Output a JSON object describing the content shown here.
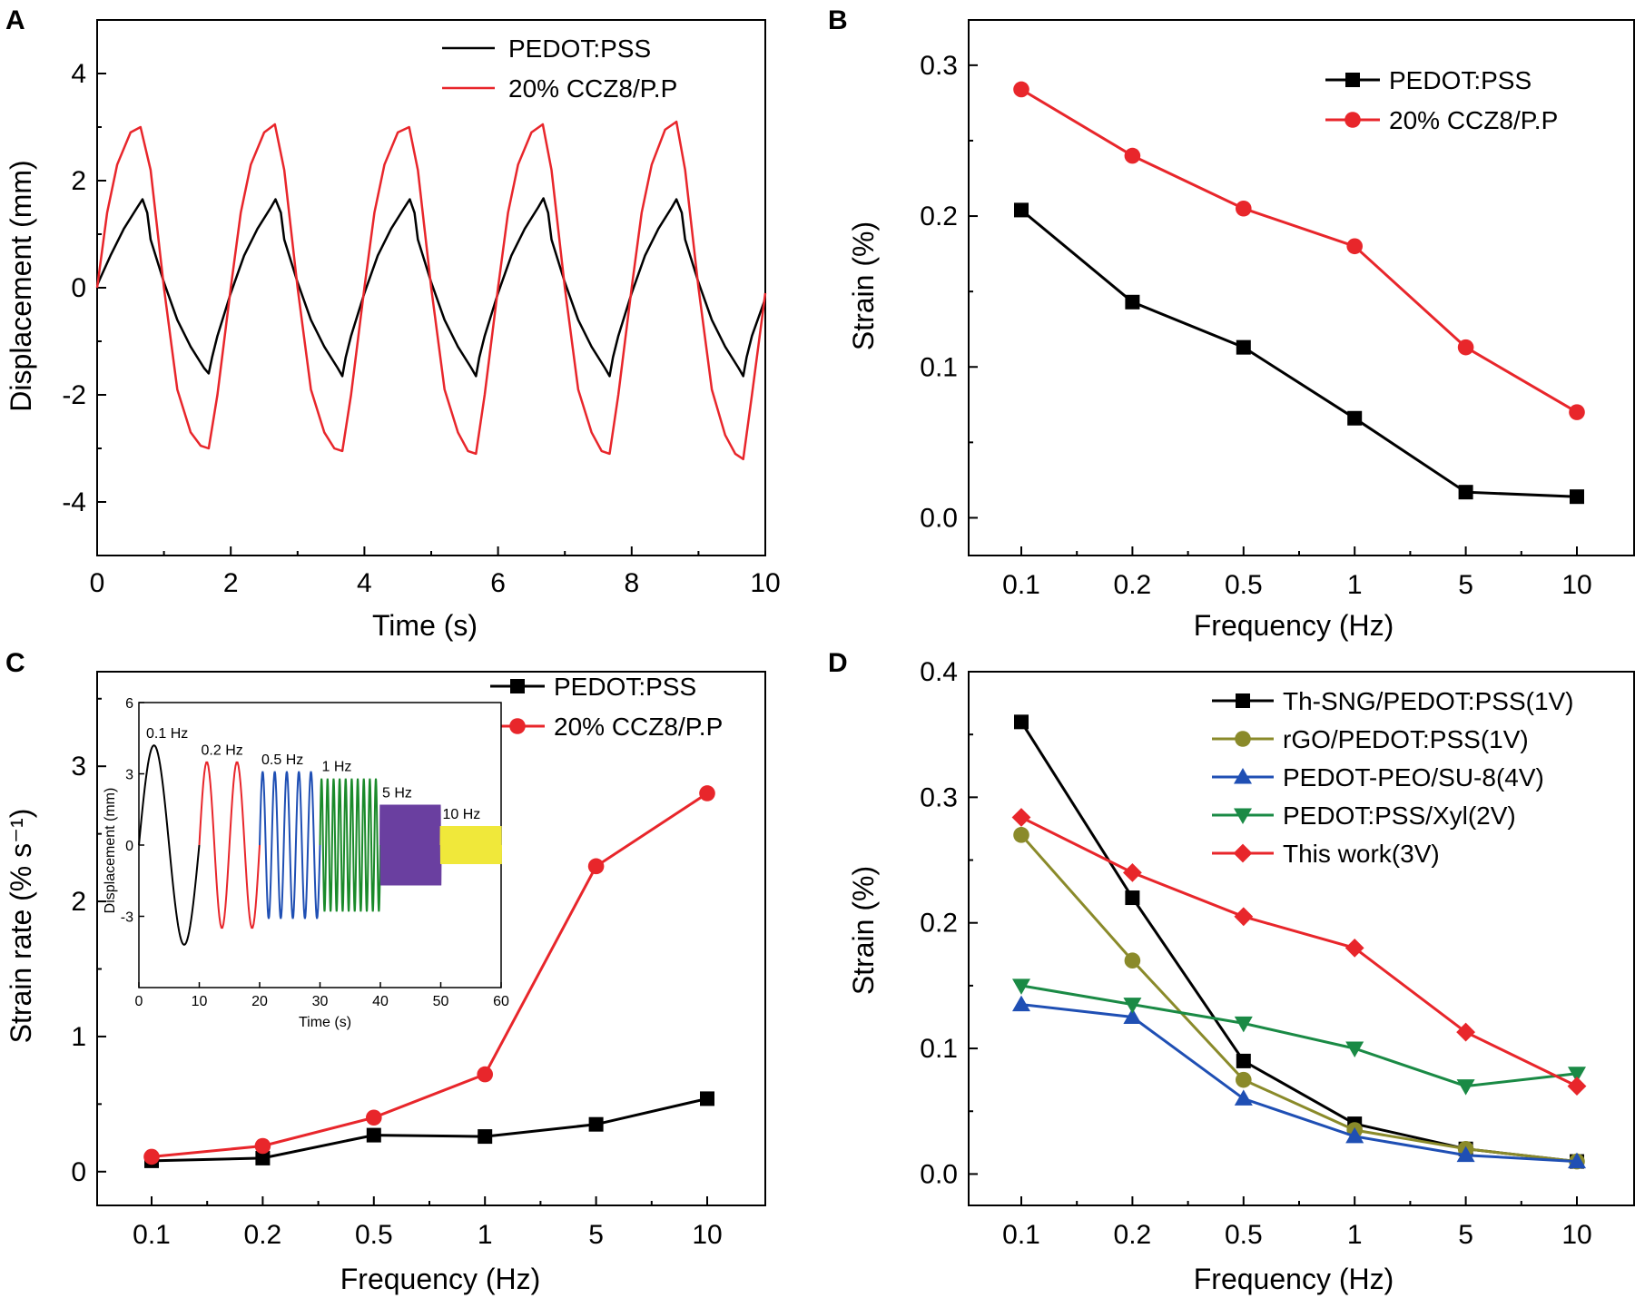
{
  "chart_data": [
    {
      "panel": "A",
      "type": "line",
      "xlabel": "Time (s)",
      "ylabel": "Displacement (mm)",
      "xlim": [
        0,
        10
      ],
      "ylim": [
        -5,
        5
      ],
      "xticks": [
        0,
        2,
        4,
        6,
        8,
        10
      ],
      "yticks": [
        -4,
        -2,
        0,
        2,
        4
      ],
      "legend": "top-right",
      "series": [
        {
          "name": "PEDOT:PSS",
          "color": "#000000",
          "x": [
            0,
            0.2,
            0.4,
            0.6,
            0.68,
            0.75,
            0.8,
            1.0,
            1.2,
            1.4,
            1.6,
            1.67,
            1.72,
            1.8,
            2.0,
            2.2,
            2.4,
            2.6,
            2.67,
            2.75,
            2.8,
            3.0,
            3.2,
            3.4,
            3.6,
            3.67,
            3.72,
            3.8,
            4.0,
            4.2,
            4.4,
            4.6,
            4.68,
            4.75,
            4.8,
            5.0,
            5.2,
            5.4,
            5.6,
            5.67,
            5.72,
            5.8,
            6.0,
            6.2,
            6.4,
            6.6,
            6.68,
            6.75,
            6.8,
            7.0,
            7.2,
            7.4,
            7.6,
            7.67,
            7.72,
            7.8,
            8.0,
            8.2,
            8.4,
            8.6,
            8.67,
            8.75,
            8.8,
            9.0,
            9.2,
            9.4,
            9.6,
            9.67,
            9.72,
            9.8,
            10.0
          ],
          "y": [
            0.05,
            0.6,
            1.1,
            1.5,
            1.65,
            1.4,
            0.9,
            0.1,
            -0.6,
            -1.1,
            -1.5,
            -1.6,
            -1.3,
            -0.9,
            -0.1,
            0.6,
            1.1,
            1.5,
            1.65,
            1.4,
            0.9,
            0.1,
            -0.6,
            -1.1,
            -1.5,
            -1.65,
            -1.3,
            -0.9,
            -0.1,
            0.6,
            1.1,
            1.5,
            1.65,
            1.4,
            0.9,
            0.1,
            -0.6,
            -1.1,
            -1.5,
            -1.65,
            -1.3,
            -0.9,
            -0.1,
            0.6,
            1.1,
            1.5,
            1.67,
            1.4,
            0.9,
            0.1,
            -0.6,
            -1.1,
            -1.5,
            -1.65,
            -1.3,
            -0.9,
            -0.1,
            0.6,
            1.1,
            1.5,
            1.65,
            1.4,
            0.9,
            0.1,
            -0.6,
            -1.1,
            -1.5,
            -1.65,
            -1.3,
            -0.9,
            -0.2
          ]
        },
        {
          "name": "20% CCZ8/P.P",
          "color": "#e8262b",
          "x": [
            0,
            0.15,
            0.3,
            0.5,
            0.65,
            0.8,
            1.0,
            1.2,
            1.4,
            1.55,
            1.67,
            1.8,
            2.0,
            2.15,
            2.3,
            2.5,
            2.66,
            2.8,
            3.0,
            3.2,
            3.4,
            3.55,
            3.67,
            3.8,
            4.0,
            4.15,
            4.3,
            4.5,
            4.67,
            4.8,
            5.0,
            5.2,
            5.4,
            5.55,
            5.67,
            5.8,
            6.0,
            6.15,
            6.3,
            6.5,
            6.67,
            6.8,
            7.0,
            7.2,
            7.4,
            7.55,
            7.67,
            7.8,
            8.0,
            8.15,
            8.3,
            8.5,
            8.67,
            8.8,
            9.0,
            9.2,
            9.4,
            9.55,
            9.67,
            9.8,
            10.0
          ],
          "y": [
            0.0,
            1.4,
            2.3,
            2.9,
            3.0,
            2.2,
            0.0,
            -1.9,
            -2.7,
            -2.95,
            -3.0,
            -2.0,
            0.0,
            1.4,
            2.3,
            2.9,
            3.05,
            2.2,
            0.0,
            -1.9,
            -2.7,
            -3.0,
            -3.05,
            -2.0,
            0.0,
            1.4,
            2.3,
            2.9,
            3.0,
            2.2,
            0.0,
            -1.9,
            -2.7,
            -3.05,
            -3.1,
            -2.0,
            0.0,
            1.4,
            2.3,
            2.9,
            3.05,
            2.2,
            0.0,
            -1.9,
            -2.7,
            -3.05,
            -3.1,
            -2.0,
            0.0,
            1.4,
            2.3,
            2.95,
            3.1,
            2.2,
            0.0,
            -1.9,
            -2.75,
            -3.1,
            -3.2,
            -2.0,
            -0.1
          ]
        }
      ]
    },
    {
      "panel": "B",
      "type": "line",
      "xlabel": "Frequency (Hz)",
      "ylabel": "Strain (%)",
      "categories": [
        "0.1",
        "0.2",
        "0.5",
        "1",
        "5",
        "10"
      ],
      "ylim": [
        -0.025,
        0.33
      ],
      "yticks": [
        "0.0",
        "0.1",
        "0.2",
        "0.3"
      ],
      "legend": "top-right",
      "series": [
        {
          "name": "PEDOT:PSS",
          "color": "#000000",
          "marker": "square",
          "values": [
            0.204,
            0.143,
            0.113,
            0.066,
            0.017,
            0.014
          ]
        },
        {
          "name": "20% CCZ8/P.P",
          "color": "#e8262b",
          "marker": "circle",
          "values": [
            0.284,
            0.24,
            0.205,
            0.18,
            0.113,
            0.07
          ]
        }
      ]
    },
    {
      "panel": "C",
      "type": "line",
      "xlabel": "Frequency (Hz)",
      "ylabel": "Strain rate (% s⁻¹)",
      "categories": [
        "0.1",
        "0.2",
        "0.5",
        "1",
        "5",
        "10"
      ],
      "ylim": [
        -0.25,
        3.7
      ],
      "yticks": [
        "0",
        "1",
        "2",
        "3"
      ],
      "legend": "top-right",
      "series": [
        {
          "name": "PEDOT:PSS",
          "color": "#000000",
          "marker": "square",
          "values": [
            0.08,
            0.1,
            0.27,
            0.26,
            0.35,
            0.54
          ]
        },
        {
          "name": "20% CCZ8/P.P",
          "color": "#e8262b",
          "marker": "circle",
          "values": [
            0.11,
            0.19,
            0.4,
            0.72,
            2.26,
            2.8
          ]
        }
      ],
      "inset": {
        "xlabel": "Time (s)",
        "ylabel": "Displacement (mm)",
        "xlim": [
          0,
          60
        ],
        "ylim": [
          -6,
          6
        ],
        "xticks": [
          "0",
          "10",
          "20",
          "30",
          "40",
          "50",
          "60"
        ],
        "yticks": [
          "6",
          "3",
          "0",
          "-3"
        ],
        "segments": [
          {
            "label": "0.1 Hz",
            "color": "#000000",
            "t_start": 0,
            "t_end": 10,
            "cycles": 1,
            "amplitude": 4.2
          },
          {
            "label": "0.2 Hz",
            "color": "#e8262b",
            "t_start": 10,
            "t_end": 20,
            "cycles": 2,
            "amplitude": 3.5
          },
          {
            "label": "0.5 Hz",
            "color": "#1f4fb4",
            "t_start": 20,
            "t_end": 30,
            "cycles": 5,
            "amplitude": 3.1
          },
          {
            "label": "1 Hz",
            "color": "#1a8a2a",
            "t_start": 30,
            "t_end": 40,
            "cycles": 10,
            "amplitude": 2.8
          },
          {
            "label": "5 Hz",
            "color": "#6a3fa0",
            "t_start": 40,
            "t_end": 50,
            "cycles": 50,
            "amplitude": 1.7
          },
          {
            "label": "10 Hz",
            "color": "#f0e83a",
            "t_start": 50,
            "t_end": 60,
            "cycles": 100,
            "amplitude": 0.8
          }
        ]
      }
    },
    {
      "panel": "D",
      "type": "line",
      "xlabel": "Frequency (Hz)",
      "ylabel": "Strain (%)",
      "categories": [
        "0.1",
        "0.2",
        "0.5",
        "1",
        "5",
        "10"
      ],
      "ylim": [
        -0.025,
        0.4
      ],
      "yticks": [
        "0.0",
        "0.1",
        "0.2",
        "0.3",
        "0.4"
      ],
      "legend": "top-right",
      "series": [
        {
          "name": "Th-SNG/PEDOT:PSS(1V)",
          "color": "#000000",
          "marker": "square",
          "values": [
            0.36,
            0.22,
            0.09,
            0.04,
            0.02,
            0.01
          ]
        },
        {
          "name": "rGO/PEDOT:PSS(1V)",
          "color": "#8a8a2a",
          "marker": "circle",
          "values": [
            0.27,
            0.17,
            0.075,
            0.035,
            0.02,
            0.01
          ]
        },
        {
          "name": "PEDOT-PEO/SU-8(4V)",
          "color": "#1f4fb4",
          "marker": "triangle-up",
          "values": [
            0.135,
            0.125,
            0.06,
            0.03,
            0.015,
            0.01
          ]
        },
        {
          "name": "PEDOT:PSS/Xyl(2V)",
          "color": "#1a8a45",
          "marker": "triangle-down",
          "values": [
            0.15,
            0.135,
            0.12,
            0.1,
            0.07,
            0.08
          ]
        },
        {
          "name": "This work(3V)",
          "color": "#e8262b",
          "marker": "diamond",
          "values": [
            0.284,
            0.24,
            0.205,
            0.18,
            0.113,
            0.07
          ]
        }
      ]
    }
  ]
}
